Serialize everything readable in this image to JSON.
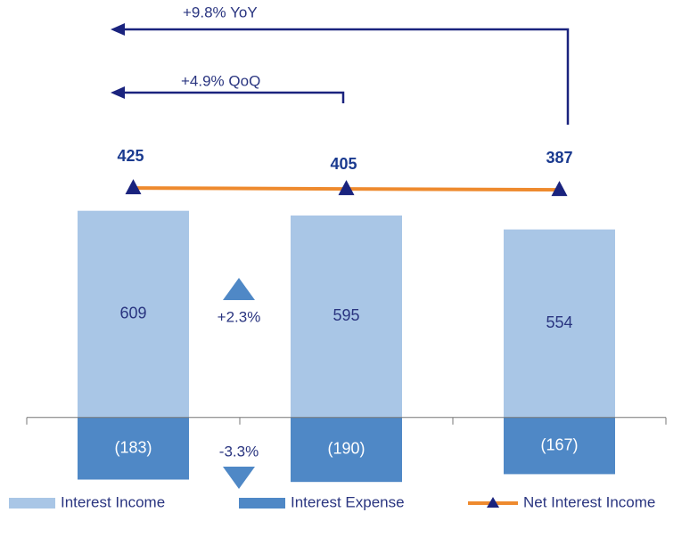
{
  "chart_data": {
    "type": "bar",
    "categories": [
      null,
      null,
      null
    ],
    "series": [
      {
        "name": "Interest Income",
        "color": "#a9c6e6",
        "values": [
          609,
          595,
          554
        ]
      },
      {
        "name": "Interest Expense",
        "color": "#4f88c6",
        "values": [
          -183,
          -190,
          -167
        ],
        "value_labels": [
          "(183)",
          "(190)",
          "(167)"
        ]
      },
      {
        "name": "Net Interest Income",
        "type": "line",
        "axis": "y2",
        "color": "#ee8a2e",
        "marker_color": "#1a237e",
        "values": [
          425,
          405,
          387
        ]
      }
    ],
    "ylim": [
      -200,
      700
    ],
    "y2lim": [
      -6000,
      600
    ],
    "annotations": [
      "+9.8% YoY",
      "+4.9% QoQ",
      "+2.3%",
      "-3.3%"
    ],
    "legend": "bottom"
  }
}
